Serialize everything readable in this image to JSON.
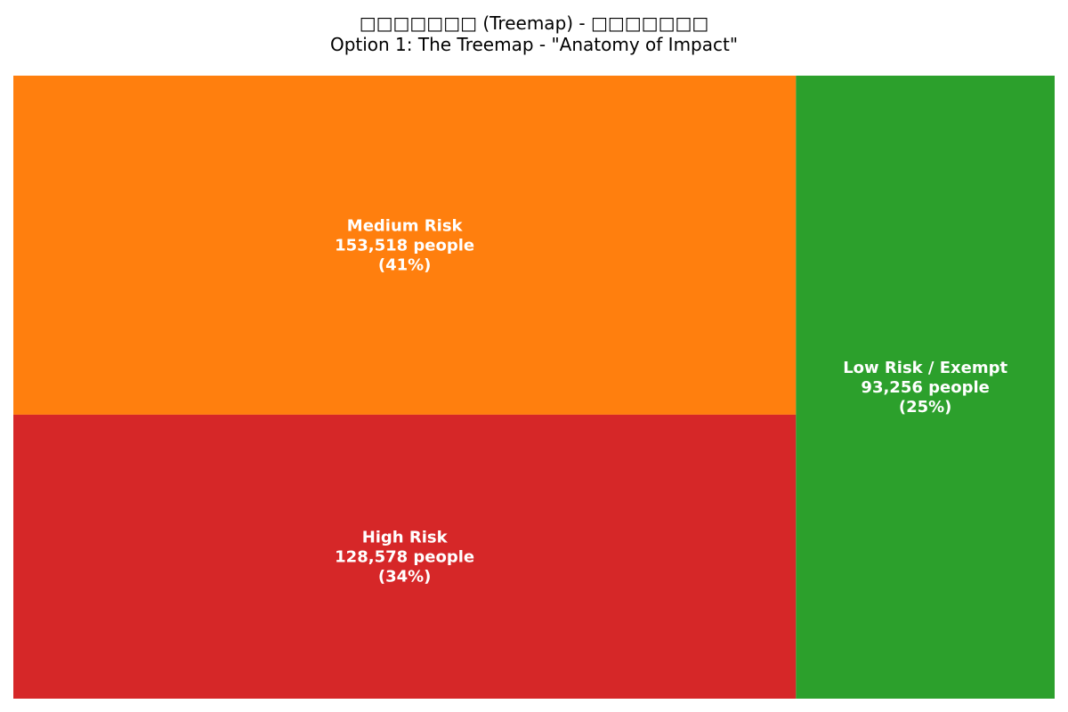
{
  "title": {
    "line1": "□□□□□□□ (Treemap) - □□□□□□□",
    "line2": "Option 1: The Treemap - \"Anatomy of Impact\""
  },
  "chart_data": {
    "type": "treemap",
    "unit": "people",
    "segments": [
      {
        "name": "Medium Risk",
        "value": 153518,
        "percent": 41,
        "value_label": "153,518 people",
        "percent_label": "(41%)",
        "color": "#ff7f0e"
      },
      {
        "name": "High Risk",
        "value": 128578,
        "percent": 34,
        "value_label": "128,578 people",
        "percent_label": "(34%)",
        "color": "#d62728"
      },
      {
        "name": "Low Risk / Exempt",
        "value": 93256,
        "percent": 25,
        "value_label": "93,256 people",
        "percent_label": "(25%)",
        "color": "#2ca02c"
      }
    ],
    "grid": false,
    "legend": "none"
  }
}
